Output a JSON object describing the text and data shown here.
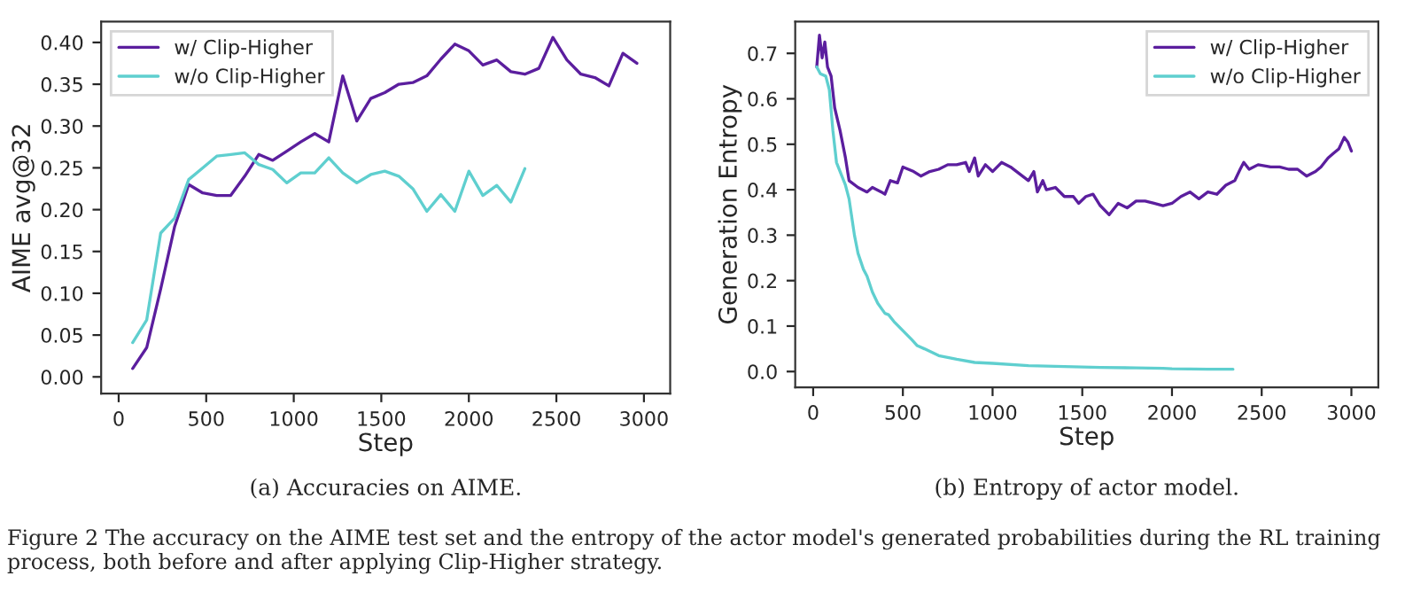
{
  "chart_data": [
    {
      "type": "line",
      "xlabel": "Step",
      "ylabel": "AIME avg@32",
      "xlim": [
        -100,
        3150
      ],
      "ylim": [
        -0.02,
        0.425
      ],
      "xticks": [
        0,
        500,
        1000,
        1500,
        2000,
        2500,
        3000
      ],
      "yticks": [
        {
          "value": 0,
          "label": "0.00"
        },
        {
          "value": 0.05,
          "label": "0.05"
        },
        {
          "value": 0.1,
          "label": "0.10"
        },
        {
          "value": 0.15,
          "label": "0.15"
        },
        {
          "value": 0.2,
          "label": "0.20"
        },
        {
          "value": 0.25,
          "label": "0.25"
        },
        {
          "value": 0.3,
          "label": "0.30"
        },
        {
          "value": 0.35,
          "label": "0.35"
        },
        {
          "value": 0.4,
          "label": "0.40"
        }
      ],
      "grid": false,
      "legend": "top left",
      "series": [
        {
          "name": "w/ Clip-Higher",
          "color": "#5b1e9e",
          "x": [
            80,
            160,
            240,
            320,
            400,
            480,
            560,
            640,
            720,
            800,
            880,
            960,
            1040,
            1120,
            1200,
            1280,
            1360,
            1440,
            1520,
            1600,
            1680,
            1760,
            1840,
            1920,
            2000,
            2080,
            2160,
            2240,
            2320,
            2400,
            2480,
            2560,
            2640,
            2720,
            2800,
            2880,
            2960
          ],
          "values": [
            0.01,
            0.035,
            0.105,
            0.18,
            0.23,
            0.22,
            0.217,
            0.217,
            0.24,
            0.266,
            0.259,
            0.27,
            0.281,
            0.291,
            0.281,
            0.36,
            0.306,
            0.333,
            0.34,
            0.35,
            0.352,
            0.36,
            0.38,
            0.398,
            0.39,
            0.373,
            0.379,
            0.365,
            0.362,
            0.369,
            0.406,
            0.379,
            0.362,
            0.358,
            0.348,
            0.387,
            0.375
          ]
        },
        {
          "name": "w/o Clip-Higher",
          "color": "#5fcfcf",
          "x": [
            80,
            160,
            240,
            320,
            400,
            480,
            560,
            640,
            720,
            800,
            880,
            960,
            1040,
            1120,
            1200,
            1280,
            1360,
            1440,
            1520,
            1600,
            1680,
            1760,
            1840,
            1920,
            2000,
            2080,
            2160,
            2240,
            2320
          ],
          "values": [
            0.041,
            0.068,
            0.172,
            0.19,
            0.236,
            0.25,
            0.264,
            0.266,
            0.268,
            0.254,
            0.248,
            0.232,
            0.244,
            0.244,
            0.262,
            0.244,
            0.232,
            0.242,
            0.246,
            0.24,
            0.225,
            0.198,
            0.218,
            0.198,
            0.246,
            0.217,
            0.229,
            0.209,
            0.249
          ]
        }
      ],
      "annotations": [
        "(a) Accuracies on AIME.",
        "Figure 2 The accuracy on the AIME test set and the entropy of the actor model's generated probabilities during the RL training process, both before and after applying Clip-Higher strategy."
      ]
    },
    {
      "type": "line",
      "xlabel": "Step",
      "ylabel": "Generation Entropy",
      "xlim": [
        -100,
        3150
      ],
      "ylim": [
        -0.035,
        0.77
      ],
      "xticks": [
        0,
        500,
        1000,
        1500,
        2000,
        2500,
        3000
      ],
      "yticks": [
        {
          "value": 0,
          "label": "0.0"
        },
        {
          "value": 0.1,
          "label": "0.1"
        },
        {
          "value": 0.2,
          "label": "0.2"
        },
        {
          "value": 0.3,
          "label": "0.3"
        },
        {
          "value": 0.4,
          "label": "0.4"
        },
        {
          "value": 0.5,
          "label": "0.5"
        },
        {
          "value": 0.6,
          "label": "0.6"
        },
        {
          "value": 0.7,
          "label": "0.7"
        }
      ],
      "grid": false,
      "legend": "top right",
      "series": [
        {
          "name": "w/ Clip-Higher",
          "color": "#5b1e9e",
          "x": [
            20,
            35,
            50,
            65,
            80,
            100,
            120,
            150,
            180,
            200,
            250,
            300,
            330,
            380,
            400,
            430,
            470,
            500,
            560,
            600,
            650,
            700,
            750,
            800,
            850,
            870,
            900,
            920,
            960,
            1000,
            1050,
            1100,
            1150,
            1200,
            1230,
            1250,
            1280,
            1300,
            1350,
            1400,
            1450,
            1480,
            1520,
            1560,
            1600,
            1650,
            1700,
            1750,
            1800,
            1850,
            1900,
            1950,
            2000,
            2050,
            2100,
            2150,
            2200,
            2250,
            2300,
            2350,
            2380,
            2400,
            2430,
            2480,
            2550,
            2600,
            2650,
            2700,
            2750,
            2800,
            2830,
            2870,
            2900,
            2930,
            2960,
            2980,
            3000
          ],
          "values": [
            0.67,
            0.74,
            0.69,
            0.725,
            0.67,
            0.65,
            0.58,
            0.53,
            0.47,
            0.42,
            0.405,
            0.395,
            0.405,
            0.395,
            0.39,
            0.42,
            0.415,
            0.45,
            0.44,
            0.43,
            0.44,
            0.445,
            0.455,
            0.455,
            0.46,
            0.44,
            0.47,
            0.43,
            0.455,
            0.44,
            0.46,
            0.45,
            0.435,
            0.42,
            0.44,
            0.395,
            0.42,
            0.4,
            0.405,
            0.385,
            0.385,
            0.37,
            0.385,
            0.39,
            0.365,
            0.345,
            0.37,
            0.36,
            0.375,
            0.375,
            0.37,
            0.365,
            0.37,
            0.385,
            0.395,
            0.38,
            0.395,
            0.39,
            0.41,
            0.42,
            0.445,
            0.46,
            0.445,
            0.455,
            0.45,
            0.45,
            0.445,
            0.445,
            0.43,
            0.44,
            0.45,
            0.47,
            0.48,
            0.49,
            0.515,
            0.505,
            0.485
          ]
        },
        {
          "name": "w/o Clip-Higher",
          "color": "#5fcfcf",
          "x": [
            20,
            40,
            70,
            90,
            110,
            130,
            150,
            180,
            200,
            230,
            250,
            280,
            300,
            330,
            360,
            400,
            420,
            450,
            500,
            550,
            580,
            620,
            700,
            800,
            900,
            1000,
            1200,
            1400,
            1600,
            1800,
            1950,
            2000,
            2200,
            2340
          ],
          "values": [
            0.67,
            0.655,
            0.65,
            0.62,
            0.53,
            0.46,
            0.44,
            0.41,
            0.38,
            0.3,
            0.26,
            0.225,
            0.21,
            0.175,
            0.15,
            0.128,
            0.125,
            0.11,
            0.09,
            0.07,
            0.057,
            0.05,
            0.035,
            0.027,
            0.02,
            0.018,
            0.013,
            0.011,
            0.009,
            0.008,
            0.007,
            0.006,
            0.005,
            0.005
          ]
        }
      ],
      "annotations": [
        "(b) Entropy of actor model."
      ]
    }
  ]
}
